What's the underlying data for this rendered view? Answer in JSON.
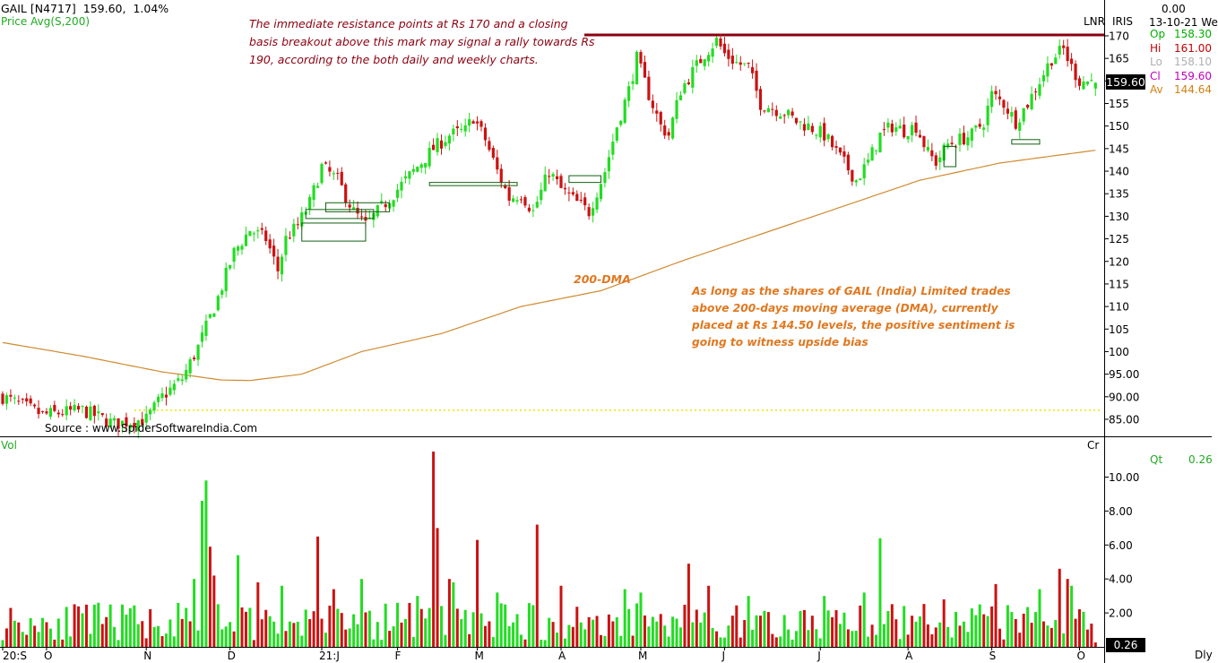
{
  "header": {
    "symbol": "GAIL [N4717]",
    "price": "159.60,",
    "change": "1.04%",
    "indicator": "Price  Avg(S,200)"
  },
  "top_right": {
    "lnr": "LNR",
    "iris": "IRIS",
    "value": "0.00",
    "date": "13-10-21 We"
  },
  "ohlc": [
    {
      "label": "Op",
      "value": "158.30",
      "color": "#00b000"
    },
    {
      "label": "Hi",
      "value": "161.00",
      "color": "#c00000"
    },
    {
      "label": "Lo",
      "value": "158.10",
      "color": "#b0b0b0"
    },
    {
      "label": "Cl",
      "value": "159.60",
      "color": "#c000c0"
    },
    {
      "label": "Av",
      "value": "144.64",
      "color": "#d08010"
    }
  ],
  "price_tag": "159.60",
  "volume": {
    "label": "Vol",
    "unit": "Cr",
    "qt_label": "Qt",
    "qt_value": "0.26",
    "tag": "0.26"
  },
  "footer": {
    "source": "Source : www.SpiderSoftwareIndia.Com",
    "period": "Dly"
  },
  "annotations": {
    "resistance": "The immediate resistance points at Rs 170 and a closing basis breakout above this mark may signal a rally towards Rs 190, according to the both daily and weekly charts.",
    "dma_label": "200-DMA",
    "dma_note": "As long as the shares of GAIL (India) Limited  trades above 200-days moving average (DMA), currently placed at Rs 144.50 levels, the positive sentiment is going to witness upside bias"
  },
  "colors": {
    "up": "#22dd22",
    "down": "#cc1111",
    "ma": "#d08a30",
    "resistance": "#8b0010",
    "support_dotted": "#e8e800",
    "annotation_red": "#8b0010",
    "annotation_orange": "#e07820"
  },
  "chart_data": [
    {
      "type": "candlestick",
      "title": "GAIL [N4717]",
      "ylim": [
        81,
        173
      ],
      "y_ticks": [
        85,
        90,
        95,
        100,
        105,
        110,
        115,
        120,
        125,
        130,
        135,
        140,
        145,
        150,
        155,
        160,
        165,
        170
      ],
      "y_tick_labels": [
        "85.00",
        "90.00",
        "95.00",
        "100",
        "105",
        "110",
        "115",
        "120",
        "125",
        "130",
        "135",
        "140",
        "145",
        "150",
        "155",
        "160",
        "165",
        "170"
      ],
      "x_tick_labels": [
        "20:S",
        "O",
        "N",
        "D",
        "21:J",
        "F",
        "M",
        "A",
        "M",
        "J",
        "J",
        "A",
        "S",
        "O"
      ],
      "x_tick_bar_index": [
        0,
        11,
        36,
        57,
        80,
        99,
        119,
        140,
        160,
        181,
        205,
        227,
        248,
        270
      ],
      "anchors_close": [
        [
          0,
          90
        ],
        [
          5,
          88
        ],
        [
          10,
          86
        ],
        [
          20,
          87
        ],
        [
          28,
          84
        ],
        [
          36,
          85
        ],
        [
          40,
          90
        ],
        [
          45,
          94
        ],
        [
          49,
          101
        ],
        [
          54,
          112
        ],
        [
          58,
          122
        ],
        [
          62,
          127
        ],
        [
          66,
          125
        ],
        [
          69,
          118
        ],
        [
          71,
          125
        ],
        [
          74,
          128
        ],
        [
          77,
          133
        ],
        [
          80,
          141
        ],
        [
          84,
          138
        ],
        [
          88,
          131
        ],
        [
          91,
          128
        ],
        [
          95,
          132
        ],
        [
          99,
          136
        ],
        [
          104,
          141
        ],
        [
          108,
          145
        ],
        [
          112,
          148
        ],
        [
          116,
          149
        ],
        [
          118,
          152
        ],
        [
          121,
          147
        ],
        [
          124,
          140
        ],
        [
          127,
          134
        ],
        [
          130,
          135
        ],
        [
          133,
          131
        ],
        [
          137,
          140
        ],
        [
          140,
          136
        ],
        [
          144,
          133
        ],
        [
          147,
          131
        ],
        [
          151,
          140
        ],
        [
          154,
          150
        ],
        [
          157,
          158
        ],
        [
          159,
          165
        ],
        [
          162,
          157
        ],
        [
          165,
          150
        ],
        [
          167,
          148
        ],
        [
          170,
          158
        ],
        [
          173,
          162
        ],
        [
          176,
          166
        ],
        [
          179,
          169
        ],
        [
          181,
          166
        ],
        [
          184,
          164
        ],
        [
          187,
          163
        ],
        [
          190,
          155
        ],
        [
          193,
          154
        ],
        [
          196,
          153
        ],
        [
          199,
          151
        ],
        [
          202,
          150
        ],
        [
          206,
          148
        ],
        [
          210,
          143
        ],
        [
          214,
          138
        ],
        [
          217,
          142
        ],
        [
          220,
          148
        ],
        [
          223,
          150
        ],
        [
          226,
          149
        ],
        [
          229,
          150
        ],
        [
          232,
          144
        ],
        [
          234,
          142
        ],
        [
          237,
          146
        ],
        [
          240,
          147
        ],
        [
          243,
          148
        ],
        [
          246,
          151
        ],
        [
          248,
          157
        ],
        [
          251,
          155
        ],
        [
          254,
          151
        ],
        [
          257,
          155
        ],
        [
          260,
          160
        ],
        [
          263,
          165
        ],
        [
          266,
          167
        ],
        [
          268,
          163
        ],
        [
          270,
          160
        ],
        [
          273,
          160
        ],
        [
          274,
          159.6
        ]
      ],
      "ma200_anchors": [
        [
          0,
          102
        ],
        [
          20,
          99
        ],
        [
          40,
          95.5
        ],
        [
          55,
          93.7
        ],
        [
          62,
          93.6
        ],
        [
          75,
          95
        ],
        [
          90,
          100
        ],
        [
          110,
          104
        ],
        [
          130,
          110
        ],
        [
          150,
          113.5
        ],
        [
          170,
          120
        ],
        [
          190,
          126
        ],
        [
          210,
          132
        ],
        [
          230,
          138
        ],
        [
          250,
          141.8
        ],
        [
          274,
          144.64
        ]
      ],
      "resistance_level": 170,
      "support_level": 87,
      "last_close": 159.6,
      "last": {
        "open": 158.3,
        "high": 161.0,
        "low": 158.1,
        "close": 159.6,
        "avg": 144.64
      }
    },
    {
      "type": "bar",
      "title": "Vol",
      "ylim": [
        0,
        12
      ],
      "y_ticks": [
        2,
        4,
        6,
        8,
        10
      ],
      "y_tick_labels": [
        "2.00",
        "4.00",
        "6.00",
        "8.00",
        "10.00"
      ],
      "spikes": [
        [
          48,
          4.0
        ],
        [
          50,
          8.6
        ],
        [
          51,
          9.8
        ],
        [
          52,
          5.9
        ],
        [
          53,
          4.2
        ],
        [
          59,
          5.4
        ],
        [
          64,
          3.8
        ],
        [
          70,
          3.6
        ],
        [
          79,
          6.5
        ],
        [
          83,
          3.4
        ],
        [
          90,
          4.0
        ],
        [
          104,
          3.0
        ],
        [
          108,
          11.5
        ],
        [
          109,
          7.0
        ],
        [
          112,
          4.0
        ],
        [
          113,
          3.8
        ],
        [
          119,
          6.3
        ],
        [
          124,
          3.2
        ],
        [
          134,
          7.2
        ],
        [
          140,
          3.6
        ],
        [
          156,
          3.4
        ],
        [
          160,
          3.2
        ],
        [
          172,
          4.9
        ],
        [
          177,
          3.6
        ],
        [
          187,
          3.0
        ],
        [
          206,
          3.0
        ],
        [
          216,
          3.2
        ],
        [
          220,
          6.4
        ],
        [
          236,
          2.8
        ],
        [
          245,
          2.5
        ],
        [
          249,
          3.7
        ],
        [
          260,
          3.4
        ],
        [
          265,
          4.6
        ],
        [
          267,
          4.0
        ],
        [
          268,
          3.6
        ]
      ],
      "last_volume": 0.26
    }
  ]
}
